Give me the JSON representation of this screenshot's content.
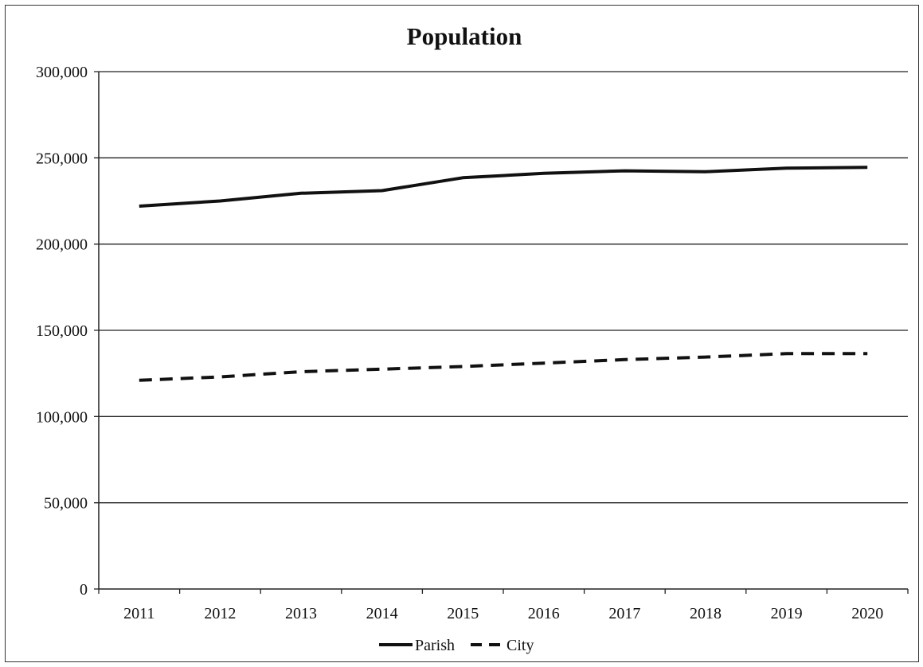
{
  "chart_data": {
    "type": "line",
    "title": "Population",
    "xlabel": "",
    "ylabel": "",
    "categories": [
      "2011",
      "2012",
      "2013",
      "2014",
      "2015",
      "2016",
      "2017",
      "2018",
      "2019",
      "2020"
    ],
    "ylim": [
      0,
      300000
    ],
    "yticks": [
      0,
      50000,
      100000,
      150000,
      200000,
      250000,
      300000
    ],
    "ytick_labels": [
      "0",
      "50,000",
      "100,000",
      "150,000",
      "200,000",
      "250,000",
      "300,000"
    ],
    "grid": "horizontal",
    "legend_position": "bottom",
    "series": [
      {
        "name": "Parish",
        "style": "solid",
        "color": "#111111",
        "values": [
          222000,
          225000,
          229500,
          231000,
          238500,
          241000,
          242500,
          242000,
          244000,
          244500
        ]
      },
      {
        "name": "City",
        "style": "dashed",
        "color": "#111111",
        "values": [
          121000,
          123000,
          126000,
          127500,
          129000,
          131000,
          133000,
          134500,
          136500,
          136500
        ]
      }
    ]
  }
}
